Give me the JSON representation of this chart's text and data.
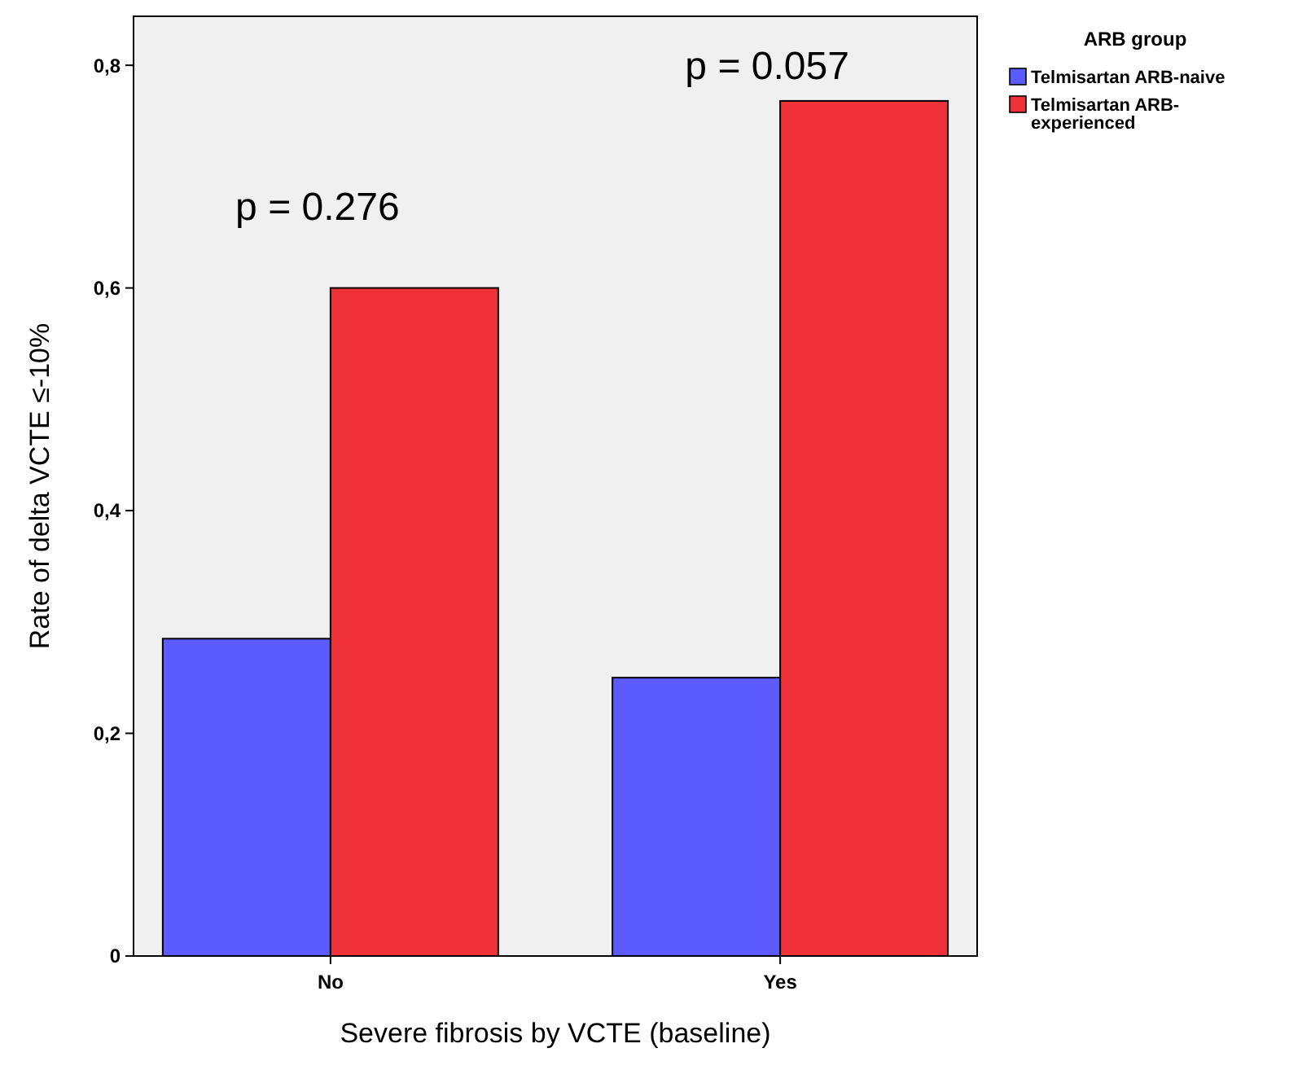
{
  "chart_data": {
    "type": "bar",
    "xlabel": "Severe fibrosis by VCTE (baseline)",
    "ylabel": "Rate of delta VCTE ≤-10%",
    "legend_title": "ARB group",
    "categories": [
      "No",
      "Yes"
    ],
    "series": [
      {
        "name": "Telmisartan ARB-naive",
        "color": "#5b5bff",
        "values": [
          0.285,
          0.25
        ]
      },
      {
        "name": "Telmisartan ARB-experienced",
        "color": "#ef323a",
        "values": [
          0.6,
          0.768
        ]
      }
    ],
    "ylim": [
      0,
      0.844
    ],
    "yticks": [
      0,
      {
        "value": 0.2,
        "label": "0,2"
      },
      {
        "value": 0.4,
        "label": "0,4"
      },
      {
        "value": 0.6,
        "label": "0,6"
      },
      {
        "value": 0.8,
        "label": "0,8"
      }
    ],
    "annotations": [
      "p = 0.276",
      "p = 0.057"
    ],
    "legend": "top right",
    "grid": false
  }
}
